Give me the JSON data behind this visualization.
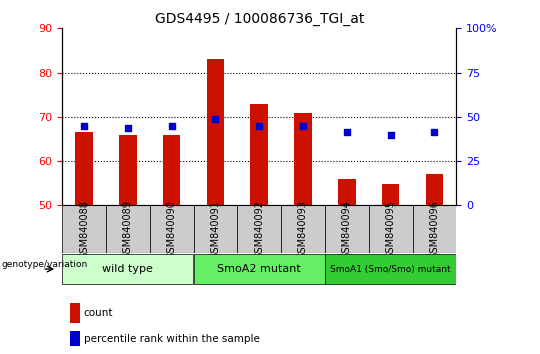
{
  "title": "GDS4495 / 100086736_TGI_at",
  "samples": [
    "GSM840088",
    "GSM840089",
    "GSM840090",
    "GSM840091",
    "GSM840092",
    "GSM840093",
    "GSM840094",
    "GSM840095",
    "GSM840096"
  ],
  "counts": [
    66.5,
    65.8,
    66.0,
    83.0,
    72.8,
    70.8,
    56.0,
    54.8,
    57.0
  ],
  "percentile_left_axis": [
    68.0,
    67.5,
    68.0,
    69.5,
    68.0,
    68.0,
    66.5,
    66.0,
    66.5
  ],
  "ylim_left": [
    50,
    90
  ],
  "ylim_right": [
    0,
    100
  ],
  "yticks_left": [
    50,
    60,
    70,
    80,
    90
  ],
  "yticks_right": [
    0,
    25,
    50,
    75,
    100
  ],
  "groups": [
    {
      "label": "wild type",
      "start": 0,
      "end": 3,
      "color": "#ccffcc"
    },
    {
      "label": "SmoA2 mutant",
      "start": 3,
      "end": 6,
      "color": "#66ee66"
    },
    {
      "label": "SmoA1 (Smo/Smo) mutant",
      "start": 6,
      "end": 9,
      "color": "#33cc33"
    }
  ],
  "bar_color": "#cc1100",
  "dot_color": "#0000cc",
  "bar_bottom": 50,
  "legend_count_label": "count",
  "legend_pct_label": "percentile rank within the sample",
  "genotype_label": "genotype/variation",
  "tick_bg_color": "#cccccc",
  "plot_bg_color": "#ffffff",
  "gridline_yticks": [
    60,
    70,
    80
  ]
}
